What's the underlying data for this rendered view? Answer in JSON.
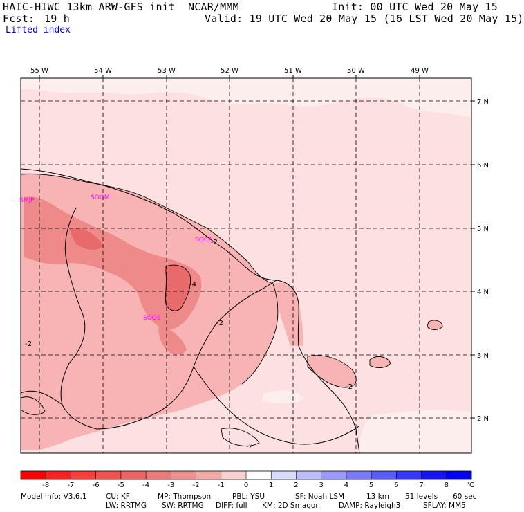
{
  "header": {
    "model_title": "HAIC-HIWC 13km ARW-GFS init",
    "org": "NCAR/MMM",
    "init_line": "Init: 00 UTC Wed 20 May 15",
    "fcst_label": "Fcst:",
    "fcst_value": "19 h",
    "valid_line": "Valid: 19 UTC Wed 20 May 15 (16 LST Wed 20 May 15)",
    "field_name": "Lifted index"
  },
  "map": {
    "lon_labels": [
      "55 W",
      "54 W",
      "53 W",
      "52 W",
      "51 W",
      "50 W",
      "49 W"
    ],
    "lat_labels": [
      "7 N",
      "6 N",
      "5 N",
      "4 N",
      "3 N",
      "2 N"
    ],
    "stations": [
      "SMJP",
      "SOGM",
      "SOCA",
      "SOOS"
    ],
    "contour_values": [
      "-2",
      "-4",
      "-2",
      "-2",
      "-2",
      "-2"
    ],
    "colors": {
      "li_minus1": "#fde0e0",
      "li_minus2": "#f8b4b4",
      "li_minus3": "#ef8a8a",
      "li_minus4": "#e86a6a",
      "border": "#000000",
      "gridline": "#000000"
    }
  },
  "colorbar": {
    "ticks": [
      "-8",
      "-7",
      "-6",
      "-5",
      "-4",
      "-3",
      "-2",
      "-1",
      "0",
      "1",
      "2",
      "3",
      "4",
      "5",
      "6",
      "7",
      "8"
    ],
    "unit": "°C",
    "colors": [
      "#ff0000",
      "#ff2020",
      "#ff3c3c",
      "#f85050",
      "#f26464",
      "#ee7a7a",
      "#f09090",
      "#f5aaaa",
      "#fad0d0",
      "#ffffff",
      "#dcdcff",
      "#bcbcff",
      "#9a9aff",
      "#7a7aff",
      "#5a5aff",
      "#3838ff",
      "#1414ff",
      "#0000ff"
    ]
  },
  "footer": {
    "model_info": "Model Info: V3.6.1",
    "cu": "CU: KF",
    "mp": "MP: Thompson",
    "pbl": "PBL: YSU",
    "sf": "SF: Noah LSM",
    "res": "13 km",
    "levels": "51 levels",
    "dt": "60 sec",
    "lw": "LW: RRTMG",
    "sw": "SW: RRTMG",
    "diff": "DIFF: full",
    "km": "KM: 2D Smagor",
    "damp": "DAMP: Rayleigh3",
    "sflay": "SFLAY: MM5"
  }
}
